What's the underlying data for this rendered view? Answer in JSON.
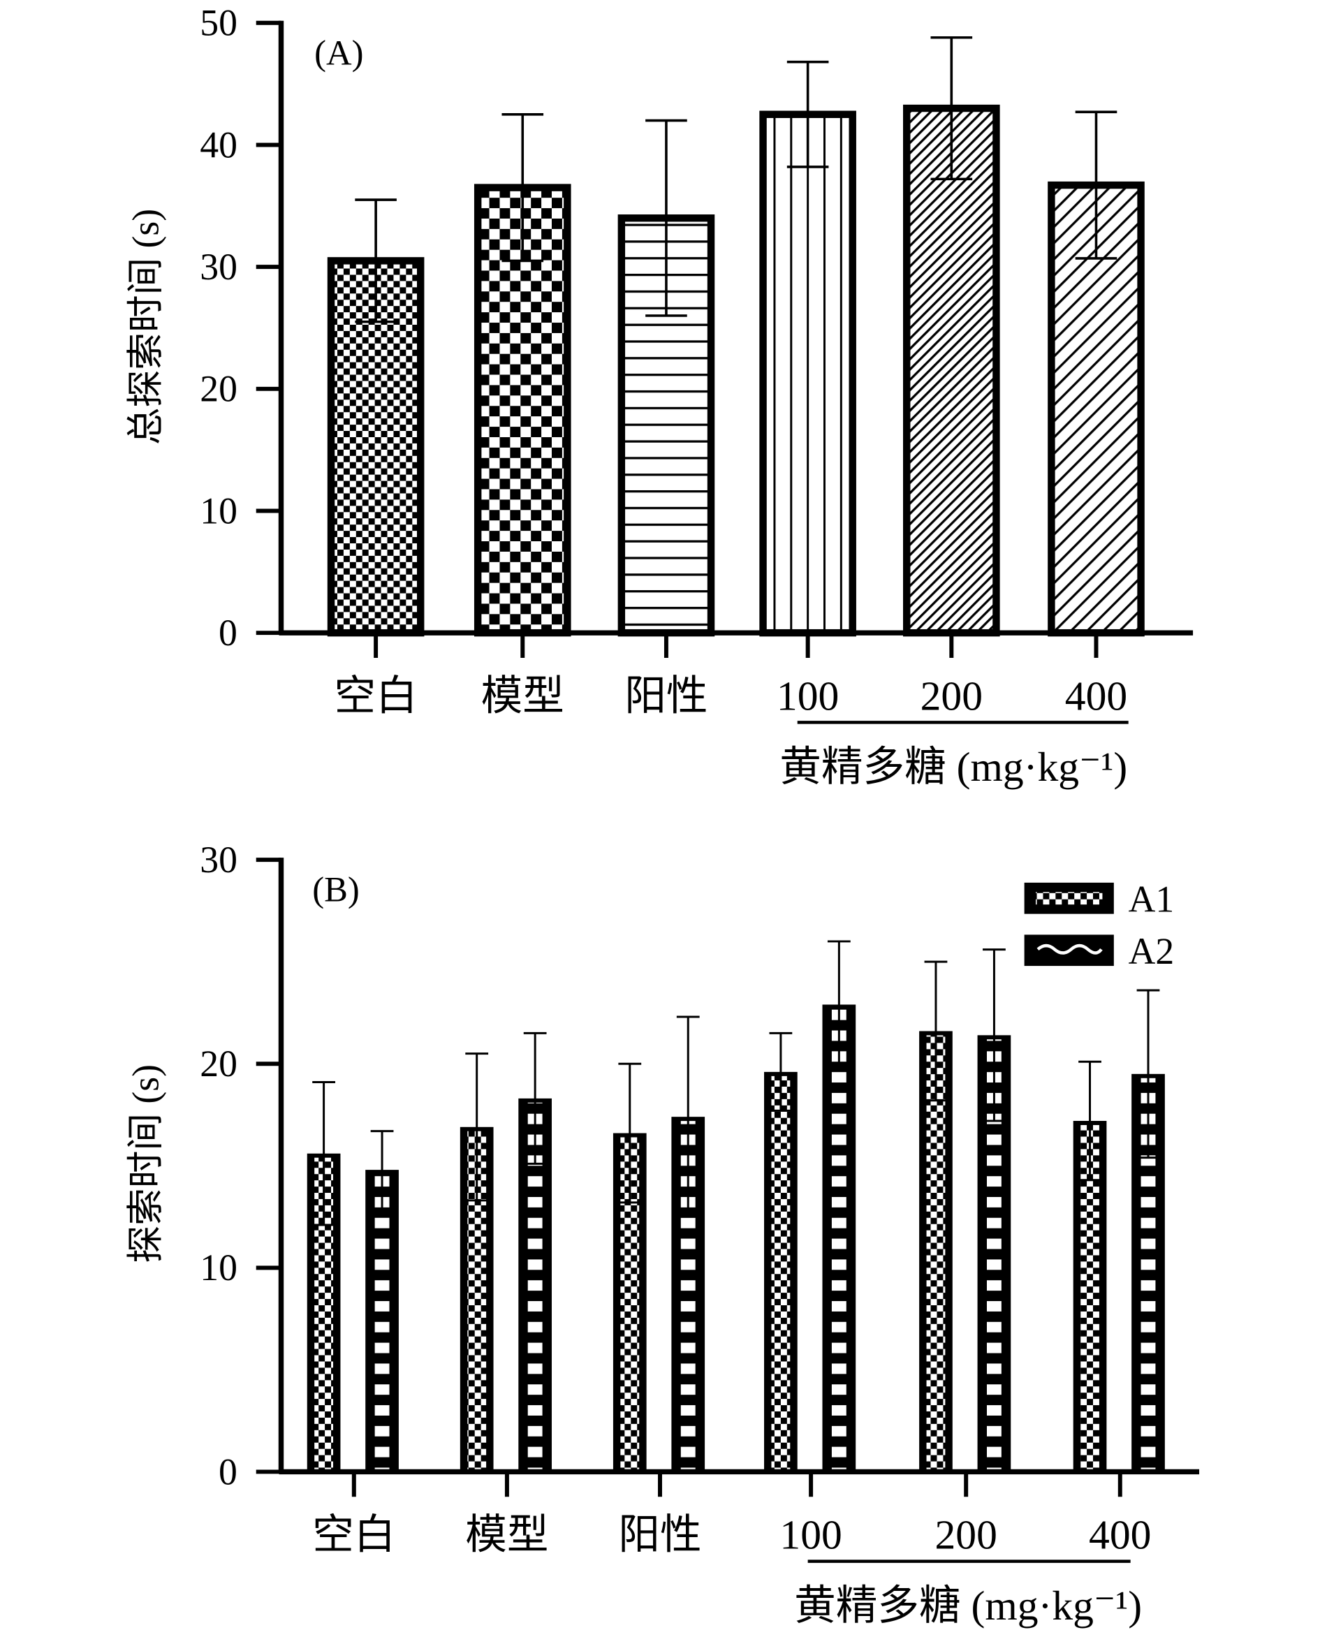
{
  "chart_data": [
    {
      "type": "bar",
      "panel_label": "(A)",
      "ylabel": "总探索时间 (s)",
      "ylim": [
        0,
        50
      ],
      "yticks": [
        "0",
        "10",
        "20",
        "30",
        "40",
        "50"
      ],
      "categories": [
        "空白",
        "模型",
        "阳性",
        "100",
        "200",
        "400"
      ],
      "group_label": "黄精多糖 (mg·kg⁻¹)",
      "values": [
        30.5,
        36.5,
        34.0,
        42.5,
        43.0,
        36.7
      ],
      "errors": [
        5.0,
        6.0,
        8.0,
        4.3,
        5.8,
        6.0
      ]
    },
    {
      "type": "bar",
      "panel_label": "(B)",
      "ylabel": "探索时间 (s)",
      "ylim": [
        0,
        30
      ],
      "yticks": [
        "0",
        "10",
        "20",
        "30"
      ],
      "categories": [
        "空白",
        "模型",
        "阳性",
        "100",
        "200",
        "400"
      ],
      "group_label": "黄精多糖 (mg·kg⁻¹)",
      "legend": [
        "A1",
        "A2"
      ],
      "series": [
        {
          "name": "A1",
          "values": [
            15.6,
            16.9,
            16.6,
            19.6,
            21.6,
            17.2
          ],
          "errors": [
            3.5,
            3.6,
            3.4,
            1.9,
            3.4,
            2.9
          ]
        },
        {
          "name": "A2",
          "values": [
            14.8,
            18.3,
            17.4,
            22.9,
            21.4,
            19.5
          ],
          "errors": [
            1.9,
            3.2,
            4.9,
            3.1,
            4.2,
            4.1
          ]
        }
      ]
    }
  ]
}
